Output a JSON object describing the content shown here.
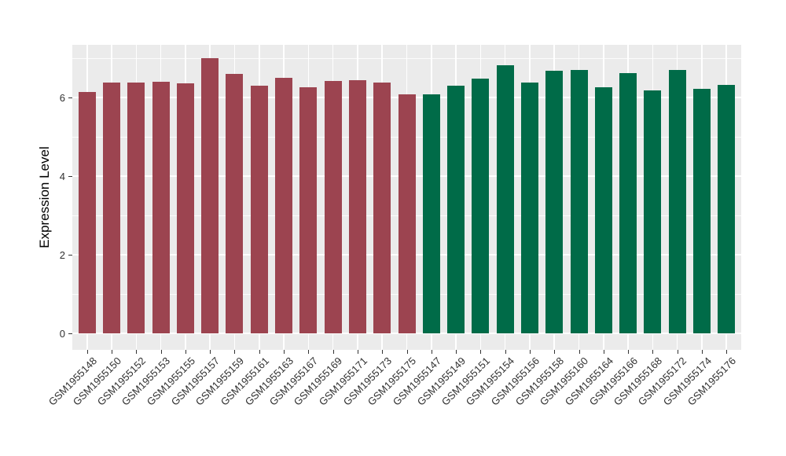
{
  "chart_data": {
    "type": "bar",
    "title": "",
    "xlabel": "",
    "ylabel": "Expression Level",
    "ylim": [
      0,
      7.4
    ],
    "ytick_labels": [
      "0",
      "2",
      "4",
      "6"
    ],
    "ytick_values": [
      0,
      2,
      4,
      6
    ],
    "minor_grid_values": [
      1,
      3,
      5,
      7
    ],
    "grid": "white major and minor gridlines on gray panel",
    "legend_position": "none",
    "panel_background": "#EBEBEB",
    "gridline_color": "#FFFFFF",
    "tick_text_color": "#303030",
    "group_colors": {
      "groupA": "#9C4450",
      "groupB": "#006B48"
    },
    "bars": [
      {
        "label": "GSM1955148",
        "value": 6.15,
        "group": "groupA"
      },
      {
        "label": "GSM1955150",
        "value": 6.39,
        "group": "groupA"
      },
      {
        "label": "GSM1955152",
        "value": 6.39,
        "group": "groupA"
      },
      {
        "label": "GSM1955153",
        "value": 6.41,
        "group": "groupA"
      },
      {
        "label": "GSM1955155",
        "value": 6.36,
        "group": "groupA"
      },
      {
        "label": "GSM1955157",
        "value": 7.0,
        "group": "groupA"
      },
      {
        "label": "GSM1955159",
        "value": 6.61,
        "group": "groupA"
      },
      {
        "label": "GSM1955161",
        "value": 6.31,
        "group": "groupA"
      },
      {
        "label": "GSM1955163",
        "value": 6.5,
        "group": "groupA"
      },
      {
        "label": "GSM1955167",
        "value": 6.27,
        "group": "groupA"
      },
      {
        "label": "GSM1955169",
        "value": 6.43,
        "group": "groupA"
      },
      {
        "label": "GSM1955171",
        "value": 6.45,
        "group": "groupA"
      },
      {
        "label": "GSM1955173",
        "value": 6.38,
        "group": "groupA"
      },
      {
        "label": "GSM1955175",
        "value": 6.08,
        "group": "groupA"
      },
      {
        "label": "GSM1955147",
        "value": 6.08,
        "group": "groupB"
      },
      {
        "label": "GSM1955149",
        "value": 6.31,
        "group": "groupB"
      },
      {
        "label": "GSM1955151",
        "value": 6.49,
        "group": "groupB"
      },
      {
        "label": "GSM1955154",
        "value": 6.83,
        "group": "groupB"
      },
      {
        "label": "GSM1955156",
        "value": 6.39,
        "group": "groupB"
      },
      {
        "label": "GSM1955158",
        "value": 6.69,
        "group": "groupB"
      },
      {
        "label": "GSM1955160",
        "value": 6.71,
        "group": "groupB"
      },
      {
        "label": "GSM1955164",
        "value": 6.27,
        "group": "groupB"
      },
      {
        "label": "GSM1955166",
        "value": 6.63,
        "group": "groupB"
      },
      {
        "label": "GSM1955168",
        "value": 6.18,
        "group": "groupB"
      },
      {
        "label": "GSM1955172",
        "value": 6.71,
        "group": "groupB"
      },
      {
        "label": "GSM1955174",
        "value": 6.23,
        "group": "groupB"
      },
      {
        "label": "GSM1955176",
        "value": 6.33,
        "group": "groupB"
      }
    ]
  }
}
